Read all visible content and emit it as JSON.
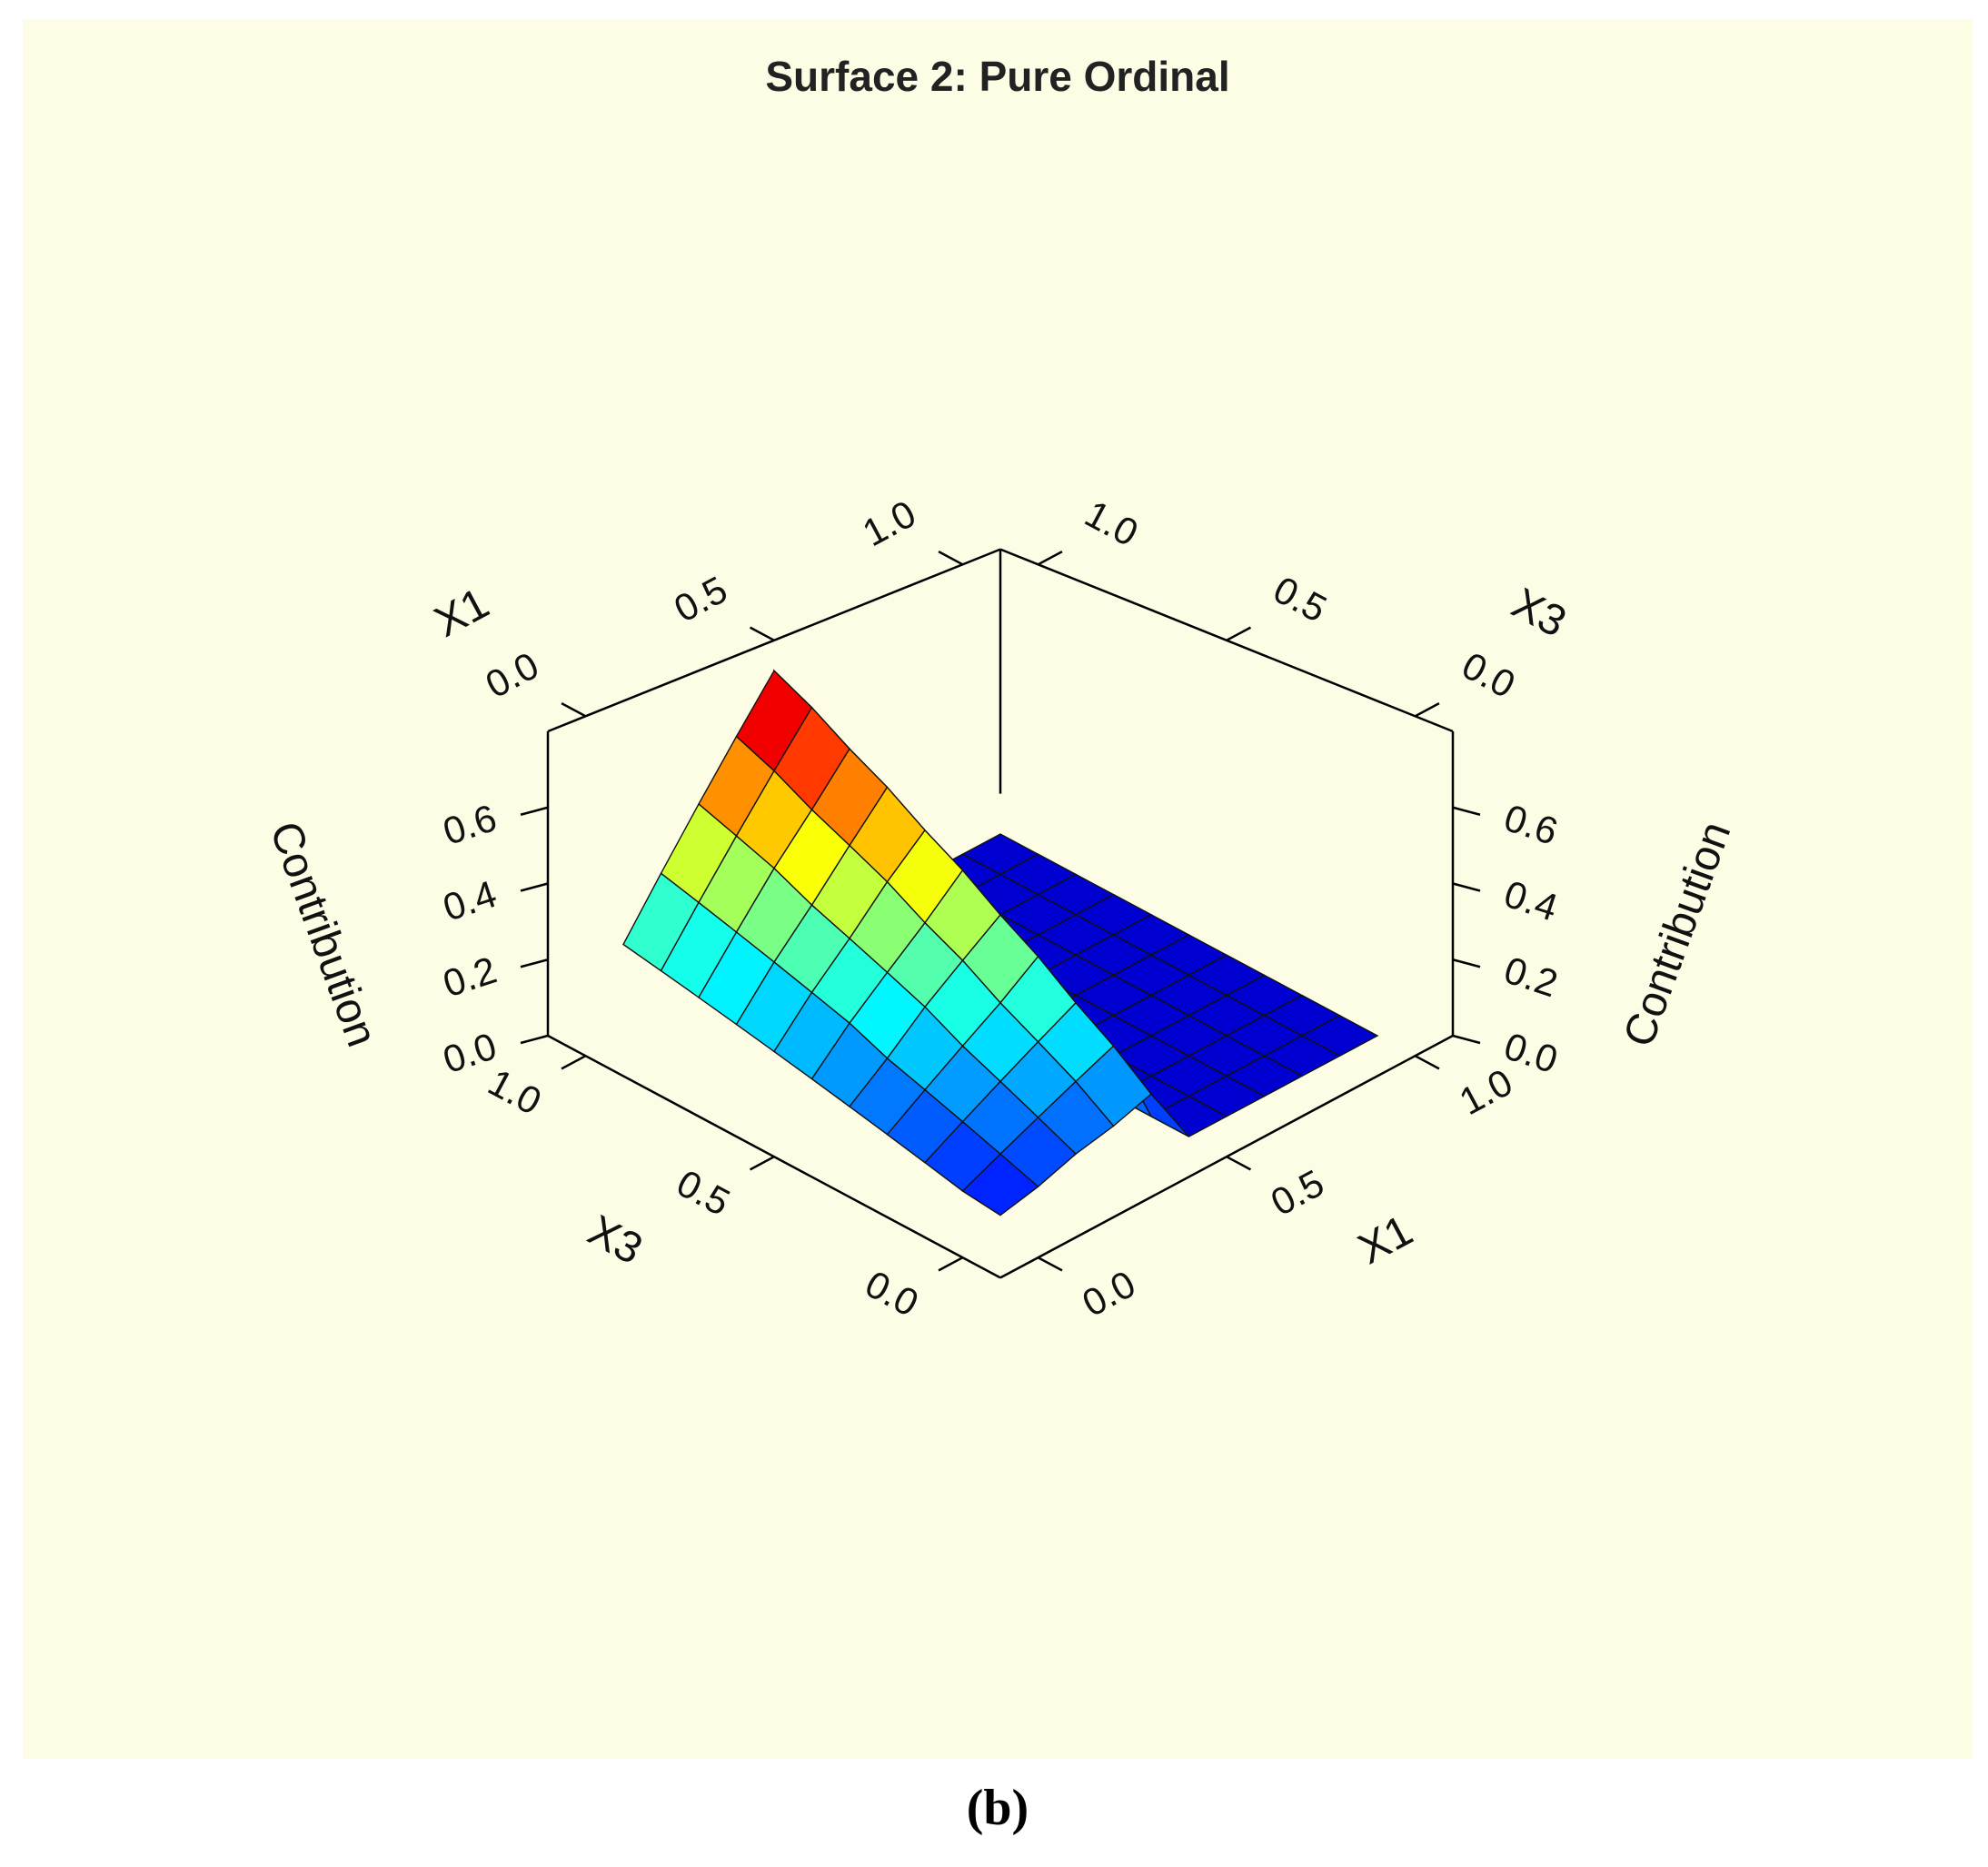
{
  "chart_data": {
    "type": "surface",
    "title": "Surface 2: Pure Ordinal",
    "x_label": "X1",
    "y_label": "X3",
    "z_label": "Contribution",
    "x": [
      0,
      0.1,
      0.2,
      0.3,
      0.4,
      0.5,
      0.6,
      0.7,
      0.8,
      0.9,
      1
    ],
    "y": [
      0,
      0.1,
      0.2,
      0.3,
      0.4,
      0.5,
      0.6,
      0.7,
      0.8,
      0.9,
      1
    ],
    "z": [
      [
        0.05,
        0.06,
        0.08,
        0.1,
        0.12,
        0.14,
        0.16,
        0.18,
        0.2,
        0.22,
        0.24
      ],
      [
        0.07,
        0.1,
        0.13,
        0.16,
        0.19,
        0.23,
        0.26,
        0.29,
        0.32,
        0.35,
        0.38
      ],
      [
        0.1,
        0.14,
        0.18,
        0.22,
        0.27,
        0.31,
        0.35,
        0.39,
        0.44,
        0.48,
        0.52
      ],
      [
        0.12,
        0.18,
        0.23,
        0.28,
        0.34,
        0.39,
        0.45,
        0.5,
        0.55,
        0.61,
        0.66
      ],
      [
        0.15,
        0.22,
        0.28,
        0.35,
        0.41,
        0.48,
        0.54,
        0.61,
        0.67,
        0.74,
        0.8
      ],
      [
        0,
        0,
        0,
        0,
        0,
        0,
        0,
        0,
        0,
        0,
        0
      ],
      [
        0,
        0,
        0,
        0,
        0,
        0,
        0,
        0,
        0,
        0,
        0
      ],
      [
        0,
        0,
        0,
        0,
        0,
        0,
        0,
        0,
        0,
        0,
        0
      ],
      [
        0,
        0,
        0,
        0,
        0,
        0,
        0,
        0,
        0,
        0,
        0
      ],
      [
        0,
        0,
        0,
        0,
        0,
        0,
        0,
        0,
        0,
        0,
        0
      ],
      [
        0,
        0,
        0,
        0,
        0,
        0,
        0,
        0,
        0,
        0,
        0
      ]
    ],
    "xlim": [
      0,
      1
    ],
    "ylim": [
      0,
      1
    ],
    "zlim": [
      0,
      0.8
    ],
    "xticks": [
      {
        "value": 0,
        "label": "0.0"
      },
      0.5,
      {
        "value": 1,
        "label": "1.0"
      }
    ],
    "yticks": [
      {
        "value": 0,
        "label": "0.0"
      },
      0.5,
      {
        "value": 1,
        "label": "1.0"
      }
    ],
    "zticks": [
      {
        "value": 0,
        "label": "0.0"
      },
      0.2,
      0.4,
      0.6
    ],
    "colormap": "jet"
  },
  "caption": "(b)"
}
